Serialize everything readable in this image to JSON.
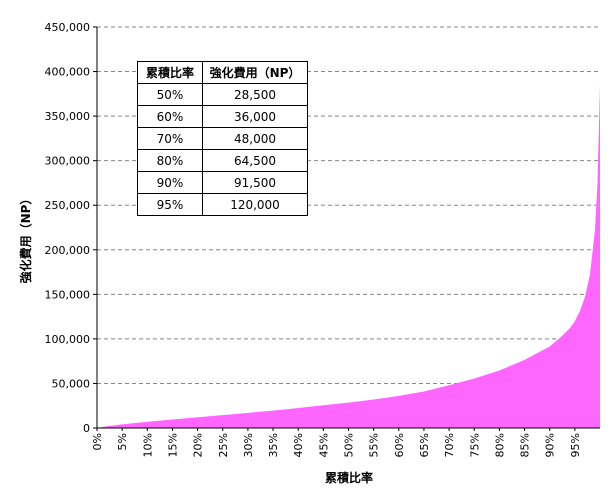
{
  "chart_data": {
    "type": "area",
    "title": "",
    "xlabel": "累積比率",
    "ylabel": "強化費用（NP）",
    "xlim": [
      0,
      100
    ],
    "ylim": [
      0,
      450000
    ],
    "y_ticks": [
      "0",
      "50,000",
      "100,000",
      "150,000",
      "200,000",
      "250,000",
      "300,000",
      "350,000",
      "400,000",
      "450,000"
    ],
    "x_ticks": [
      "0%",
      "5%",
      "10%",
      "15%",
      "20%",
      "25%",
      "30%",
      "35%",
      "40%",
      "45%",
      "50%",
      "55%",
      "60%",
      "65%",
      "70%",
      "75%",
      "80%",
      "85%",
      "90%",
      "95%"
    ],
    "grid": "horizontal dashed",
    "series": [
      {
        "color": "#ff66ff",
        "x": [
          0,
          2,
          5,
          10,
          15,
          20,
          25,
          30,
          35,
          40,
          45,
          50,
          55,
          60,
          65,
          70,
          75,
          80,
          85,
          90,
          92,
          94,
          95,
          96,
          97,
          98,
          99,
          99.5,
          100
        ],
        "values": [
          0,
          2000,
          4000,
          7000,
          9500,
          12000,
          14500,
          17000,
          19500,
          22500,
          25500,
          28500,
          32000,
          36000,
          41000,
          48000,
          55500,
          64500,
          76500,
          91500,
          101000,
          112000,
          120000,
          131000,
          147000,
          172000,
          222000,
          275000,
          385000
        ]
      }
    ],
    "table": {
      "headers": [
        "累積比率",
        "強化費用（NP）"
      ],
      "rows": [
        [
          "50%",
          "28,500"
        ],
        [
          "60%",
          "36,000"
        ],
        [
          "70%",
          "48,000"
        ],
        [
          "80%",
          "64,500"
        ],
        [
          "90%",
          "91,500"
        ],
        [
          "95%",
          "120,000"
        ]
      ]
    }
  }
}
